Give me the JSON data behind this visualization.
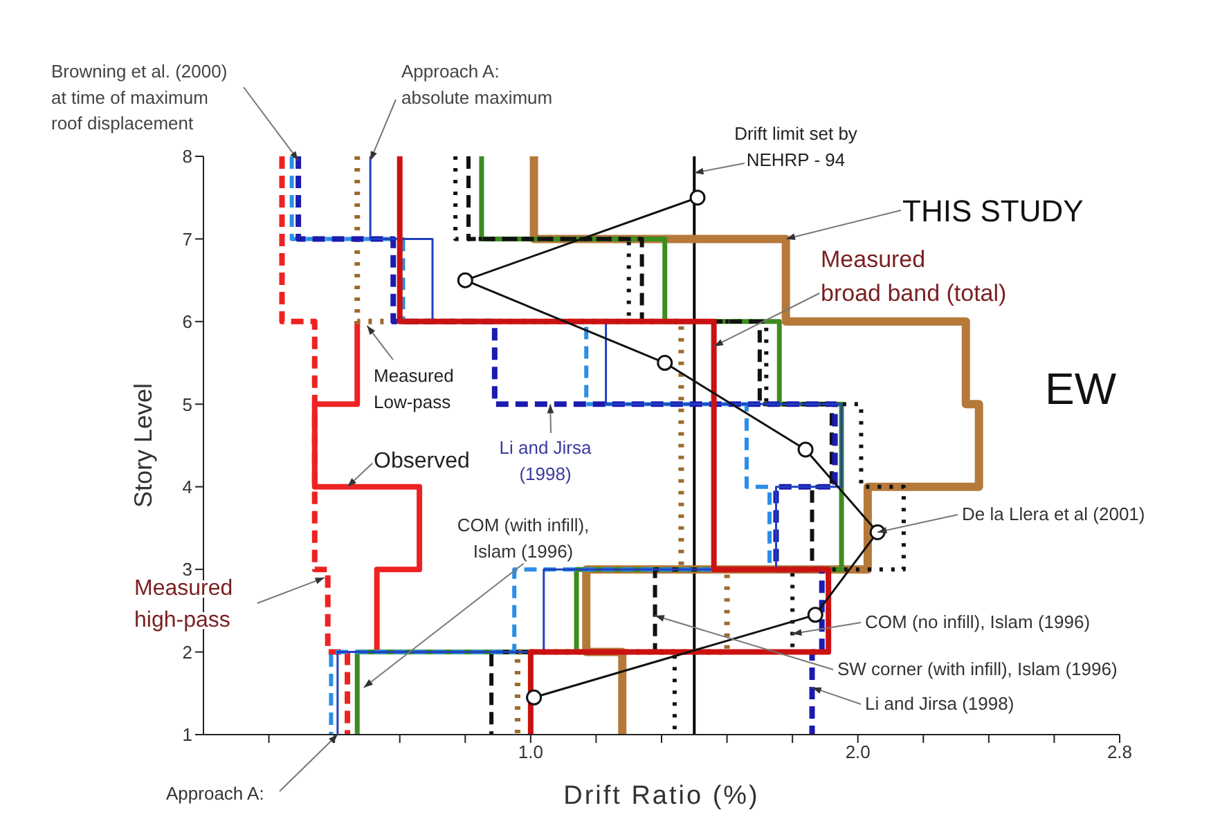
{
  "chart_data": {
    "type": "line",
    "xlabel": "Drift Ratio (%)",
    "ylabel": "Story Level",
    "xlim": [
      0,
      2.8
    ],
    "ylim": [
      1,
      8
    ],
    "xticks": [
      {
        "value": 0.2,
        "label": null
      },
      {
        "value": 0.4,
        "label": null
      },
      {
        "value": 0.6,
        "label": null
      },
      {
        "value": 0.8,
        "label": null
      },
      {
        "value": 1.0,
        "label": "1.0"
      },
      {
        "value": 1.2,
        "label": null
      },
      {
        "value": 1.4,
        "label": null
      },
      {
        "value": 1.6,
        "label": null
      },
      {
        "value": 1.8,
        "label": null
      },
      {
        "value": 2.0,
        "label": "2.0"
      },
      {
        "value": 2.2,
        "label": null
      },
      {
        "value": 2.4,
        "label": null
      },
      {
        "value": 2.6,
        "label": null
      },
      2.8
    ],
    "yticks": [
      1,
      2,
      3,
      4,
      5,
      6,
      7,
      8
    ],
    "grid": false,
    "series": [
      {
        "color": "#ee2222",
        "line_style": "dashed",
        "x": [
          0.24,
          0.24,
          0.34,
          0.34,
          0.38,
          0.38,
          0.44,
          0.44
        ],
        "values": [
          8,
          6,
          6,
          3,
          3,
          2,
          2,
          1
        ]
      },
      {
        "color": "#ee2222",
        "line_style": "solid",
        "x": [
          0.47,
          0.47,
          0.34,
          0.34,
          0.66,
          0.66,
          0.53,
          0.53
        ],
        "values": [
          6,
          5,
          5,
          4,
          4,
          3,
          3,
          2
        ]
      },
      {
        "color": "#b5793a",
        "line_style": "solid",
        "x": [
          1.01,
          1.01,
          1.78,
          1.78,
          2.33,
          2.33,
          2.37,
          2.37,
          2.03,
          2.03,
          1.17,
          1.17,
          1.28,
          1.28
        ],
        "values": [
          8,
          7,
          7,
          6,
          6,
          5,
          5,
          4,
          4,
          3,
          3,
          2,
          2,
          1
        ]
      },
      {
        "color": "#3d8c1f",
        "line_style": "solid",
        "x": [
          0.85,
          0.85,
          1.41,
          1.41,
          1.76,
          1.76,
          1.95,
          1.95,
          1.14,
          1.14,
          0.47,
          0.47
        ],
        "values": [
          8,
          7,
          7,
          6,
          6,
          5,
          5,
          3,
          3,
          2,
          2,
          1
        ]
      },
      {
        "color": "#111111",
        "line_style": "dashed",
        "x": [
          0.81,
          0.81,
          1.34,
          1.34,
          1.7,
          1.7,
          1.92,
          1.92,
          1.86,
          1.86,
          1.38,
          1.38,
          0.88,
          0.88
        ],
        "values": [
          8,
          7,
          7,
          6,
          6,
          5,
          5,
          4,
          4,
          3,
          3,
          2,
          2,
          1
        ]
      },
      {
        "color": "#111111",
        "line_style": "dotted",
        "x": [
          0.77,
          0.77,
          1.3,
          1.3,
          1.72,
          1.72,
          2.01,
          2.01,
          2.14,
          2.14,
          1.8,
          1.8,
          1.44,
          1.44
        ],
        "values": [
          8,
          7,
          7,
          6,
          6,
          5,
          5,
          4,
          4,
          3,
          3,
          2,
          2,
          1
        ]
      },
      {
        "color": "#9c6a2e",
        "line_style": "dotted",
        "x": [
          0.47,
          0.47,
          1.46,
          1.46,
          1.6,
          1.6,
          0.96,
          0.96
        ],
        "values": [
          8,
          6,
          6,
          3,
          3,
          2,
          2,
          1
        ]
      },
      {
        "color": "#2a8ee6",
        "line_style": "dashed",
        "x": [
          0.27,
          0.27,
          0.61,
          0.61,
          1.17,
          1.17,
          1.66,
          1.66,
          1.73,
          1.73,
          0.95,
          0.95,
          0.39,
          0.39
        ],
        "values": [
          8,
          7,
          7,
          6,
          6,
          5,
          5,
          4,
          4,
          3,
          3,
          2,
          2,
          1
        ]
      },
      {
        "color": "#1b1bb0",
        "line_style": "dashed",
        "x": [
          0.29,
          0.29,
          0.58,
          0.58,
          0.89,
          0.89,
          1.93,
          1.93,
          1.75,
          1.75,
          1.89,
          1.89,
          1.86,
          1.86
        ],
        "values": [
          8,
          7,
          7,
          6,
          6,
          5,
          5,
          4,
          4,
          3,
          3,
          2,
          2,
          1
        ]
      },
      {
        "color": "#2040c0",
        "line_style": "solid",
        "x": [
          0.51,
          0.51,
          0.7,
          0.7,
          1.23,
          1.23,
          1.95,
          1.95,
          1.75,
          1.75,
          1.04,
          1.04,
          0.41,
          0.41
        ],
        "values": [
          8,
          7,
          7,
          6,
          6,
          5,
          5,
          4,
          4,
          3,
          3,
          2,
          2,
          1
        ]
      },
      {
        "color": "#cc1111",
        "line_style": "solid",
        "x": [
          0.6,
          0.6,
          1.56,
          1.56,
          1.91,
          1.91,
          1.0,
          1.0
        ],
        "values": [
          8,
          6,
          6,
          3,
          3,
          2,
          2,
          1
        ]
      },
      {
        "color": "#111111",
        "line_style": "solid",
        "marker": "circle",
        "x": [
          1.01,
          1.87,
          2.06,
          1.84,
          1.41,
          0.8,
          1.51
        ],
        "values": [
          1.45,
          2.45,
          3.45,
          4.45,
          5.5,
          6.5,
          7.5
        ]
      }
    ],
    "ref_lines": [
      {
        "axis": "x",
        "value": 1.5,
        "color": "#000000"
      }
    ],
    "annotations": [
      {
        "text": "Browning et al. (2000)\nat time of maximum\nroof displacement",
        "x": 0.29,
        "y": 7.95
      },
      {
        "text": "Approach A:\nabsolute maximum",
        "x": 0.51,
        "y": 7.95
      },
      {
        "text": "Drift limit set by\nNEHRP - 94",
        "x": 1.5,
        "y": 7.8
      },
      {
        "text": "THIS STUDY",
        "x": 1.78,
        "y": 7.0
      },
      {
        "text": "Measured\nbroad band (total)",
        "x": 1.56,
        "y": 5.7
      },
      "EW",
      {
        "text": "Measured\nLow-pass",
        "x": 0.5,
        "y": 5.95
      },
      {
        "text": "Li and Jirsa\n(1998)",
        "x": 1.06,
        "y": 5.0
      },
      {
        "text": "Observed",
        "x": 0.44,
        "y": 4.0
      },
      {
        "text": "Measured\nhigh-pass",
        "x": 0.37,
        "y": 2.9
      },
      {
        "text": "COM (with infill),\nIslam (1996)",
        "x": 0.49,
        "y": 1.57
      },
      {
        "text": "Approach A:",
        "x": 0.41,
        "y": 1.0
      },
      {
        "text": "De la Llera et al (2001)",
        "x": 2.06,
        "y": 3.45
      },
      {
        "text": "COM (no infill), Islam (1996)",
        "x": 1.8,
        "y": 2.22
      },
      {
        "text": "SW corner (with infill), Islam (1996)",
        "x": 1.38,
        "y": 2.44
      },
      {
        "text": "Li and Jirsa (1998)",
        "x": 1.86,
        "y": 1.57
      }
    ]
  }
}
